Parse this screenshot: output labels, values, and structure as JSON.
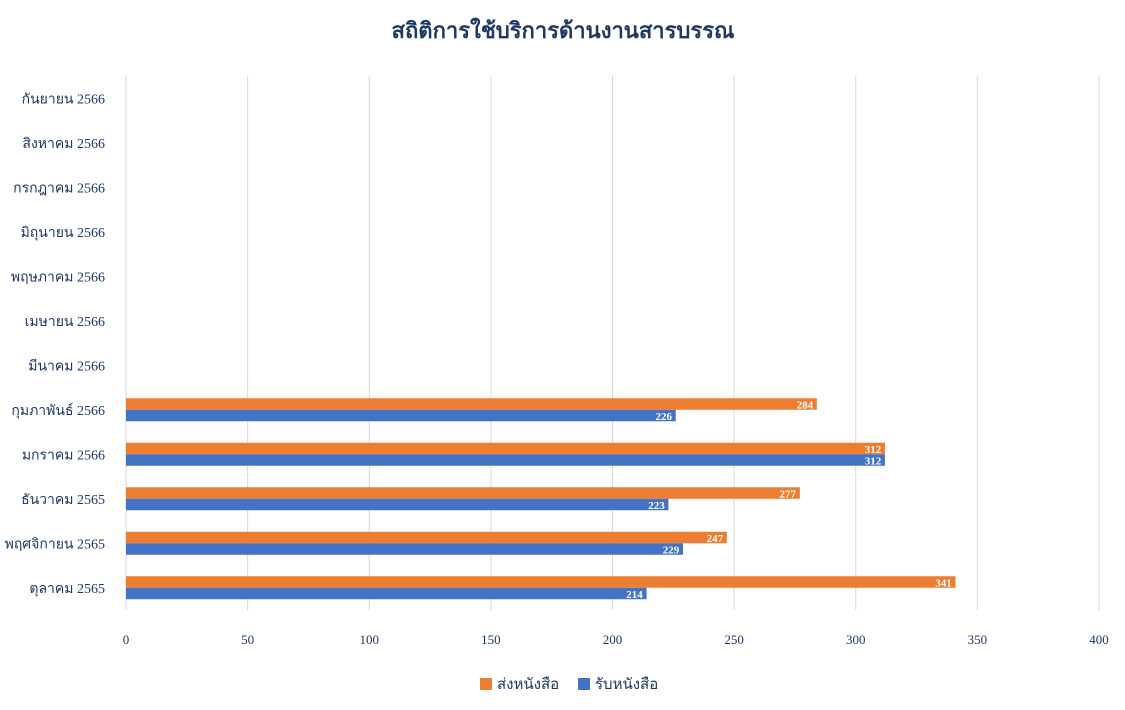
{
  "chart_data": {
    "type": "bar",
    "orientation": "horizontal",
    "title": "สถิติการใช้บริการด้านงานสารบรรณ",
    "categories": [
      "กันยายน 2566",
      "สิงหาคม 2566",
      "กรกฎาคม 2566",
      "มิถุนายน 2566",
      "พฤษภาคม 2566",
      "เมษายน 2566",
      "มีนาคม 2566",
      "กุมภาพันธ์ 2566",
      "มกราคม 2566",
      "ธันวาคม 2565",
      "พฤศจิกายน 2565",
      "ตุลาคม 2565"
    ],
    "series": [
      {
        "name": "ส่งหนังสือ",
        "color": "#ED7D31",
        "values": [
          null,
          null,
          null,
          null,
          null,
          null,
          null,
          284,
          312,
          277,
          247,
          341
        ]
      },
      {
        "name": "รับหนังสือ",
        "color": "#4472C4",
        "values": [
          null,
          null,
          null,
          null,
          null,
          null,
          null,
          226,
          312,
          223,
          229,
          214
        ]
      }
    ],
    "xlim": [
      0,
      400
    ],
    "xticks": [
      0,
      50,
      100,
      150,
      200,
      250,
      300,
      350,
      400
    ],
    "grid": "vertical",
    "legend": "bottom-center",
    "text_color": "#1F3864",
    "grid_color": "#D9D9D9"
  }
}
